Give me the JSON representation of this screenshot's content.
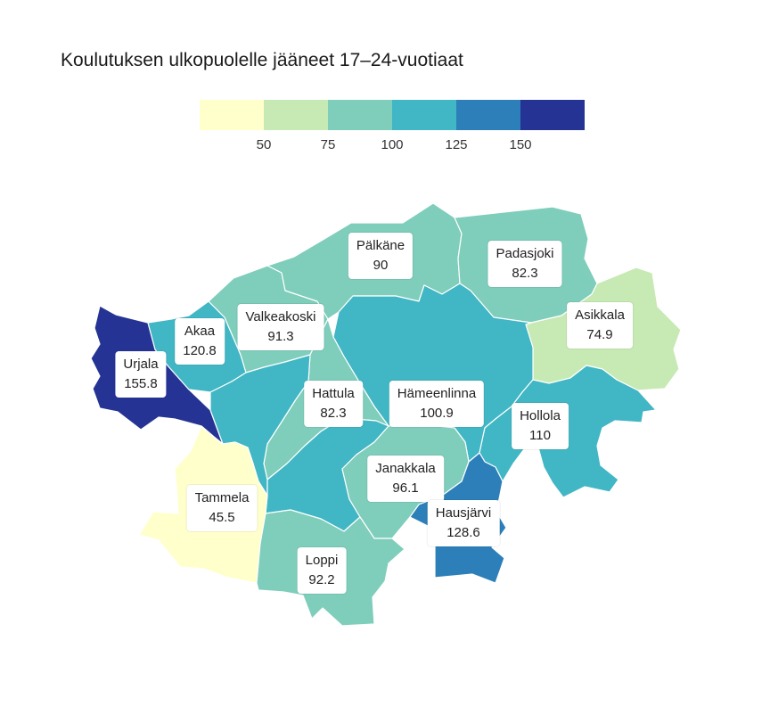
{
  "title": "Koulutuksen ulkopuolelle jääneet 17–24-vuotiaat",
  "legend": {
    "colors": [
      "#ffffcc",
      "#c7e9b4",
      "#7fcdbb",
      "#41b6c4",
      "#2c7fb8",
      "#253494"
    ],
    "ticks": [
      "50",
      "75",
      "100",
      "125",
      "150"
    ]
  },
  "regions": [
    {
      "name": "Pälkäne",
      "value": "90"
    },
    {
      "name": "Padasjoki",
      "value": "82.3"
    },
    {
      "name": "Asikkala",
      "value": "74.9"
    },
    {
      "name": "Valkeakoski",
      "value": "91.3"
    },
    {
      "name": "Akaa",
      "value": "120.8"
    },
    {
      "name": "Urjala",
      "value": "155.8"
    },
    {
      "name": "Hattula",
      "value": "82.3"
    },
    {
      "name": "Hämeenlinna",
      "value": "100.9"
    },
    {
      "name": "Hollola",
      "value": "110"
    },
    {
      "name": "Janakkala",
      "value": "96.1"
    },
    {
      "name": "Hausjärvi",
      "value": "128.6"
    },
    {
      "name": "Tammela",
      "value": "45.5"
    },
    {
      "name": "Loppi",
      "value": "92.2"
    }
  ]
}
